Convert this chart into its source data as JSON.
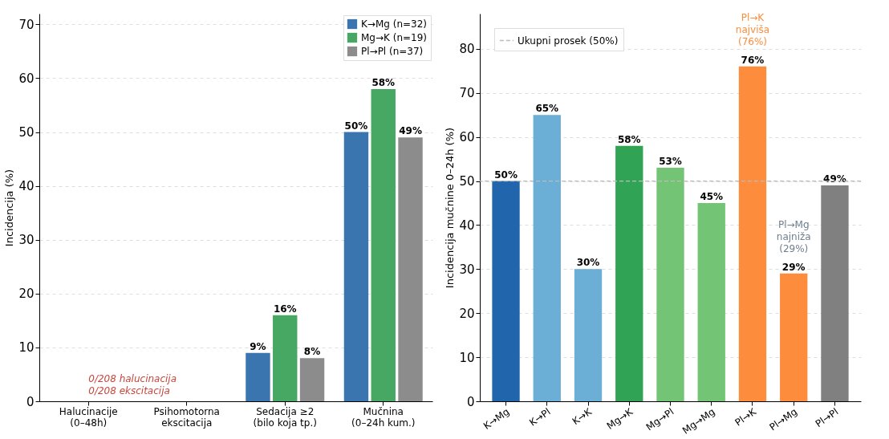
{
  "chart_data": [
    {
      "type": "bar",
      "ylabel": "Incidencija (%)",
      "categories": [
        "Halucinacije\n(0–48h)",
        "Psihomotorna\nekscitacija",
        "Sedacija ≥2\n(bilo koja tp.)",
        "Mučnina\n(0–24h kum.)"
      ],
      "series": [
        {
          "name": "K→Mg (n=32)",
          "color": "#3a75b0",
          "values": [
            0,
            0,
            9,
            50
          ],
          "value_labels": [
            null,
            null,
            "9%",
            "50%"
          ]
        },
        {
          "name": "Mg→K (n=19)",
          "color": "#47a863",
          "values": [
            0,
            0,
            16,
            58
          ],
          "value_labels": [
            null,
            null,
            "16%",
            "58%"
          ]
        },
        {
          "name": "Pl→Pl (n=37)",
          "color": "#8c8c8c",
          "values": [
            0,
            0,
            8,
            49
          ],
          "value_labels": [
            null,
            null,
            "8%",
            "49%"
          ]
        }
      ],
      "ylim": [
        0,
        72
      ],
      "yticks": [
        0,
        10,
        20,
        30,
        40,
        50,
        60,
        70
      ],
      "grid": "y",
      "legend": "top right",
      "annotations": [
        "0/208 halucinacija\n0/208 ekscitacija"
      ]
    },
    {
      "type": "bar",
      "ylabel": "Incidencija mučnine 0–24h (%)",
      "categories": [
        "K→Mg",
        "K→Pl",
        "K→K",
        "Mg→K",
        "Mg→Pl",
        "Mg→Mg",
        "Pl→K",
        "Pl→Mg",
        "Pl→Pl"
      ],
      "values": [
        50,
        65,
        30,
        58,
        53,
        45,
        76,
        29,
        49
      ],
      "colors": [
        "#2166ac",
        "#6baed6",
        "#6baed6",
        "#31a354",
        "#74c476",
        "#74c476",
        "#fd8d3c",
        "#fd8d3c",
        "#808080"
      ],
      "value_labels": [
        "50%",
        "65%",
        "30%",
        "58%",
        "53%",
        "45%",
        "76%",
        "29%",
        "49%"
      ],
      "ylim": [
        0,
        88
      ],
      "yticks": [
        0,
        10,
        20,
        30,
        40,
        50,
        60,
        70,
        80
      ],
      "grid": "y",
      "legend": "top left",
      "ref_lines": [
        {
          "axis": "y",
          "value": 50,
          "label": "Ukupni prosek (50%)",
          "color": "#bbbbbb",
          "line_style": "dashed"
        }
      ],
      "annotations": [
        "Pl→K\nnajviša\n(76%)",
        "Pl→Mg\nnajniža\n(29%)"
      ]
    }
  ]
}
